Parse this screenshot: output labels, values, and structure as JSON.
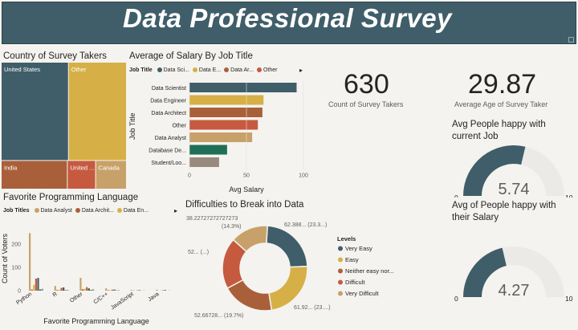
{
  "header": {
    "title": "Data Professional Survey"
  },
  "treemap": {
    "title": "Country of Survey Takers",
    "cells": [
      {
        "label": "United States",
        "color": "#3f5e69"
      },
      {
        "label": "Other",
        "color": "#d6b046"
      },
      {
        "label": "India",
        "color": "#a9603a"
      },
      {
        "label": "United ...",
        "color": "#c65a3f"
      },
      {
        "label": "Canada",
        "color": "#c8a16a"
      }
    ]
  },
  "salary_chart": {
    "title": "Average of Salary By Job Title",
    "legend_title": "Job Title",
    "legend": [
      {
        "label": "Data Sci...",
        "color": "#3f5e69"
      },
      {
        "label": "Data E...",
        "color": "#d6b046"
      },
      {
        "label": "Data Ar...",
        "color": "#a9603a"
      },
      {
        "label": "Other",
        "color": "#c65a3f"
      }
    ]
  },
  "lang_chart": {
    "title": "Favorite Programming Language",
    "legend_title": "Job Titles",
    "legend": [
      {
        "label": "Data Analyst",
        "color": "#c8a16a"
      },
      {
        "label": "Data Archit...",
        "color": "#a9603a"
      },
      {
        "label": "Data En...",
        "color": "#d6b046"
      }
    ]
  },
  "donut": {
    "title": "Difficulties to Break into Data",
    "legend_title": "Levels",
    "labels": {
      "top_left": "38.22727272727273",
      "top_left_pct": "(14.3%)",
      "top_right": "62.388... (23.3...)",
      "left": "52... (...)",
      "bottom_right": "61.92... (23....)",
      "bottom_left": "52.66728... (19.7%)"
    }
  },
  "kpis": {
    "count": {
      "value": "630",
      "label": "Count of Survey Takers"
    },
    "age": {
      "value": "29.87",
      "label": "Average Age of Survey Taker"
    }
  },
  "gauges": {
    "job": {
      "title_line1": "Avg People happy with",
      "title_line2": "current Job",
      "min_label": "0",
      "max_label": "10",
      "value_label": "5.74"
    },
    "salary": {
      "title_line1": "Avg of People happy with",
      "title_line2": "their Salary",
      "min_label": "0",
      "max_label": "10",
      "value_label": "4.27"
    }
  },
  "chart_data": [
    {
      "type": "treemap",
      "title": "Country of Survey Takers",
      "categories": [
        "United States",
        "Other",
        "India",
        "United ...",
        "Canada"
      ],
      "values": [
        262,
        226,
        75,
        32,
        35
      ]
    },
    {
      "type": "bar",
      "orientation": "horizontal",
      "title": "Average of Salary By Job Title",
      "xlabel": "Avg Salary",
      "ylabel": "Job Title",
      "categories": [
        "Data Scientist",
        "Data Engineer",
        "Data Architect",
        "Other",
        "Data Analyst",
        "Database De...",
        "Student/Loo..."
      ],
      "values": [
        94,
        65,
        64,
        60,
        55,
        33,
        26
      ],
      "colors": [
        "#3f5e69",
        "#d6b046",
        "#a9603a",
        "#c65a3f",
        "#c8a16a",
        "#1f6f57",
        "#9a8a7e"
      ],
      "xlim": [
        0,
        100
      ],
      "xticks": [
        "0",
        "50",
        "100"
      ]
    },
    {
      "type": "bar",
      "title": "Favorite Programming Language",
      "xlabel": "Favorite Programming Language",
      "ylabel": "Count of Voters",
      "categories": [
        "Python",
        "R",
        "Other",
        "C/C++",
        "JavaScript",
        "Java"
      ],
      "yticks": [
        "0",
        "100",
        "200"
      ],
      "ylim": [
        0,
        270
      ],
      "series": [
        {
          "name": "Data Analyst",
          "color": "#c8a16a",
          "values": [
            248,
            20,
            55,
            10,
            3,
            4
          ]
        },
        {
          "name": "Data Archit...",
          "color": "#a9603a",
          "values": [
            5,
            3,
            6,
            2,
            1,
            0
          ]
        },
        {
          "name": "Data En...",
          "color": "#d6b046",
          "values": [
            25,
            3,
            8,
            2,
            0,
            1
          ]
        },
        {
          "color": "#c65a3f",
          "values": [
            52,
            12,
            15,
            4,
            2,
            2
          ]
        },
        {
          "color": "#3f5e69",
          "values": [
            55,
            14,
            10,
            5,
            2,
            3
          ]
        },
        {
          "color": "#1f6f57",
          "values": [
            5,
            2,
            3,
            1,
            0,
            0
          ]
        },
        {
          "color": "#9a8a7e",
          "values": [
            8,
            3,
            6,
            2,
            1,
            1
          ]
        }
      ]
    },
    {
      "type": "pie",
      "style": "donut",
      "title": "Difficulties to Break into Data",
      "legend_position": "right",
      "categories": [
        "Very Easy",
        "Easy",
        "Neither easy nor...",
        "Difficult",
        "Very Difficult"
      ],
      "values": [
        62.388,
        61.92,
        52.66728,
        52,
        38.22727272727273
      ],
      "colors": [
        "#3f5e69",
        "#d6b046",
        "#a9603a",
        "#c65a3f",
        "#c8a16a"
      ]
    },
    {
      "type": "gauge",
      "title": "Avg People happy with current Job",
      "min": 0,
      "max": 10,
      "value": 5.74
    },
    {
      "type": "gauge",
      "title": "Avg of People happy with their Salary",
      "min": 0,
      "max": 10,
      "value": 4.27
    }
  ]
}
